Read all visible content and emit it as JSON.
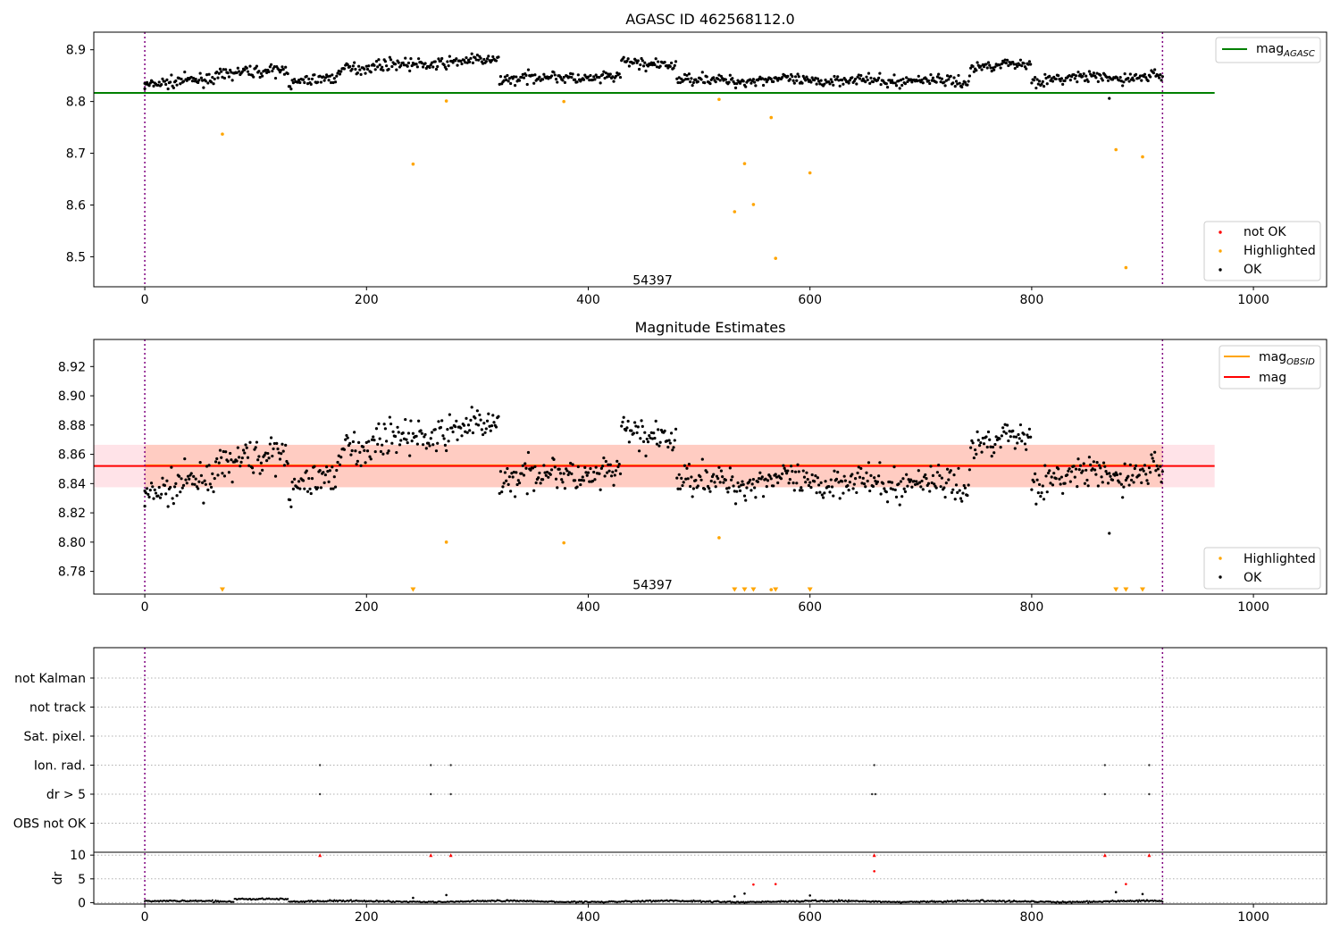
{
  "chart_data": [
    {
      "type": "scatter",
      "title": "AGASC ID 462568112.0",
      "xlabel": "",
      "ylabel": "",
      "xlim": [
        -46,
        1066
      ],
      "ylim": [
        8.442,
        8.934
      ],
      "xticks": [
        0,
        200,
        400,
        600,
        800,
        1000
      ],
      "yticks": [
        8.5,
        8.6,
        8.7,
        8.8,
        8.9
      ],
      "ytick_labels": [
        "8.5",
        "8.6",
        "8.7",
        "8.8",
        "8.9"
      ],
      "vlines": [
        0,
        918
      ],
      "hlines": [
        {
          "name": "mag_AGASC",
          "y": 8.8166,
          "x": [
            -46,
            965
          ],
          "color": "#008000"
        }
      ],
      "annotation": {
        "text": "54397",
        "x": 458,
        "y": 8.455
      },
      "legend_upper": {
        "position": "upper right",
        "entries": [
          {
            "label": "mag",
            "sub": "AGASC",
            "color": "#008000",
            "kind": "line"
          }
        ]
      },
      "legend_lower": {
        "position": "lower right",
        "entries": [
          {
            "label": "not OK",
            "color": "#ff0000",
            "kind": "dot"
          },
          {
            "label": "Highlighted",
            "color": "#ffa500",
            "kind": "dot"
          },
          {
            "label": "OK",
            "color": "#000000",
            "kind": "dot"
          }
        ]
      },
      "series": [
        {
          "name": "Highlighted",
          "color": "#ffa500",
          "marker": "dot",
          "x": [
            70,
            242,
            272,
            378,
            518,
            532,
            541,
            549,
            565,
            569,
            600,
            876,
            885,
            900
          ],
          "y": [
            8.737,
            8.679,
            8.801,
            8.8,
            8.804,
            8.587,
            8.68,
            8.601,
            8.769,
            8.497,
            8.662,
            8.707,
            8.479,
            8.693
          ]
        },
        {
          "name": "OK",
          "color": "#000000",
          "marker": "dot",
          "x": [
            0,
            870
          ],
          "y": [
            8.835,
            8.806
          ],
          "generated": {
            "source": "estimates",
            "offset": 0
          }
        }
      ]
    },
    {
      "type": "scatter",
      "title": "Magnitude Estimates",
      "xlabel": "",
      "ylabel": "",
      "xlim": [
        -46,
        1066
      ],
      "ylim": [
        8.7645,
        8.9385
      ],
      "xticks": [
        0,
        200,
        400,
        600,
        800,
        1000
      ],
      "yticks": [
        8.78,
        8.8,
        8.82,
        8.84,
        8.86,
        8.88,
        8.9,
        8.92
      ],
      "ytick_labels": [
        "8.78",
        "8.80",
        "8.82",
        "8.84",
        "8.86",
        "8.88",
        "8.90",
        "8.92"
      ],
      "vlines": [
        0,
        918
      ],
      "bands": [
        {
          "y": [
            8.8375,
            8.8665
          ],
          "x": [
            -46,
            965
          ],
          "color": "#ffc0cb",
          "opacity": 0.45
        },
        {
          "y": [
            8.8375,
            8.8665
          ],
          "x": [
            0,
            918
          ],
          "color": "#ffa07a",
          "opacity": 0.35
        }
      ],
      "hlines": [
        {
          "name": "mag_OBSID",
          "y": 8.8525,
          "x": [
            0,
            918
          ],
          "color": "#ffa500"
        },
        {
          "name": "mag",
          "y": 8.852,
          "x": [
            -46,
            965
          ],
          "color": "#ff0000"
        }
      ],
      "annotation": {
        "text": "54397",
        "x": 458,
        "y": 8.771
      },
      "legend_upper": {
        "position": "upper right",
        "entries": [
          {
            "label": "mag",
            "sub": "OBSID",
            "color": "#ffa500",
            "kind": "line"
          },
          {
            "label": "mag",
            "sub": "",
            "color": "#ff0000",
            "kind": "line"
          }
        ]
      },
      "legend_lower": {
        "position": "lower right",
        "entries": [
          {
            "label": "Highlighted",
            "color": "#ffa500",
            "kind": "dot"
          },
          {
            "label": "OK",
            "color": "#000000",
            "kind": "dot"
          }
        ]
      },
      "series": [
        {
          "name": "Highlighted",
          "color": "#ffa500",
          "marker": "dot",
          "x": [
            272,
            378,
            518,
            565
          ],
          "y": [
            8.8,
            8.7995,
            8.803,
            8.7675
          ]
        },
        {
          "name": "Highlighted (below axis)",
          "color": "#ffa500",
          "marker": "triangle-down",
          "x": [
            70,
            242,
            532,
            541,
            549,
            569,
            600,
            876,
            885,
            900
          ],
          "y": [
            8.766,
            8.766,
            8.766,
            8.766,
            8.766,
            8.766,
            8.766,
            8.766,
            8.766,
            8.766
          ]
        },
        {
          "name": "OK",
          "color": "#000000",
          "marker": "dot",
          "x": [
            0,
            870
          ],
          "y": [
            8.835,
            8.806
          ],
          "generated": {
            "source": "estimates",
            "offset": 0
          }
        }
      ],
      "estimates": {
        "x_range": [
          0,
          918
        ],
        "segments": [
          {
            "x": [
              0,
              30
            ],
            "y": [
              8.83,
              8.835
            ]
          },
          {
            "x": [
              30,
              130
            ],
            "y": [
              8.84,
              8.865
            ]
          },
          {
            "x": [
              130,
              175
            ],
            "y": [
              8.835,
              8.845
            ]
          },
          {
            "x": [
              175,
              320
            ],
            "y": [
              8.865,
              8.88
            ]
          },
          {
            "x": [
              320,
              430
            ],
            "y": [
              8.846,
              8.846
            ]
          },
          {
            "x": [
              430,
              480
            ],
            "y": [
              8.874,
              8.872
            ]
          },
          {
            "x": [
              480,
              745
            ],
            "y": [
              8.842,
              8.84
            ]
          },
          {
            "x": [
              745,
              800
            ],
            "y": [
              8.868,
              8.872
            ]
          },
          {
            "x": [
              800,
              918
            ],
            "y": [
              8.843,
              8.848
            ]
          }
        ]
      }
    },
    {
      "type": "scatter",
      "title": "",
      "xlabel": "",
      "xlim": [
        -46,
        1066
      ],
      "xticks": [
        0,
        200,
        400,
        600,
        800,
        1000
      ],
      "vlines": [
        0,
        918
      ],
      "flags": {
        "rows": [
          "not Kalman",
          "not track",
          "Sat. pixel.",
          "Ion. rad.",
          "dr > 5",
          "OBS not OK"
        ],
        "points": [
          {
            "row": "Ion. rad.",
            "x": [
              158,
              258,
              276,
              658,
              866,
              906
            ]
          },
          {
            "row": "dr > 5",
            "x": [
              158,
              258,
              276,
              656,
              659,
              866,
              906
            ]
          }
        ]
      },
      "dr_panel": {
        "ylabel": "dr",
        "ylim": [
          -0.3,
          10.6
        ],
        "yticks": [
          0,
          5,
          10
        ],
        "series": [
          {
            "name": "OK",
            "color": "#000000",
            "marker": "dot",
            "x": [
              242,
              272,
              532,
              541,
              600,
              876,
              900
            ],
            "y": [
              1.0,
              1.6,
              1.3,
              1.9,
              1.5,
              2.2,
              1.8
            ],
            "generated": {
              "source": "dr_baseline"
            }
          },
          {
            "name": "not OK",
            "color": "#ff0000",
            "marker": "triangle-up",
            "x": [
              158,
              258,
              276,
              658,
              866,
              906
            ],
            "y": [
              10,
              10,
              10,
              10,
              10,
              10
            ]
          },
          {
            "name": "not OK (dot)",
            "color": "#ff0000",
            "marker": "dot",
            "x": [
              549,
              569,
              658,
              885
            ],
            "y": [
              3.8,
              3.9,
              6.6,
              3.9
            ]
          }
        ]
      }
    }
  ]
}
